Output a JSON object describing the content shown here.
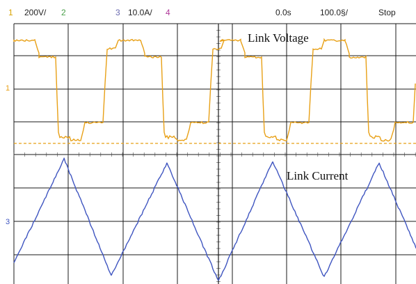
{
  "header": {
    "ch1": {
      "num": "1",
      "scale": "200V/",
      "color": "#d9a300"
    },
    "ch2": {
      "num": "2",
      "color": "#4aa04a"
    },
    "ch3": {
      "num": "3",
      "scale": "10.0A/",
      "color": "#6a6ab0"
    },
    "ch4": {
      "num": "4",
      "color": "#b03a9a"
    },
    "time_offset": "0.0s",
    "time_scale": "100.0§/",
    "run_state": "Stop"
  },
  "annotations": {
    "voltage_label": "Link Voltage",
    "current_label": "Link Current"
  },
  "markers": {
    "ch1_marker": "1",
    "ch3_marker": "3"
  },
  "colors": {
    "voltage_trace": "#e8a016",
    "current_trace": "#3f55c0",
    "grid": "#1a1a1a",
    "background": "#ffffff"
  },
  "traces": {
    "voltage": {
      "description_levels": [
        "high",
        "mid-high",
        "low",
        "mid-low"
      ],
      "period_divisions": 3.9
    },
    "current": {
      "shape": "triangle",
      "period_divisions": 3.9
    }
  }
}
